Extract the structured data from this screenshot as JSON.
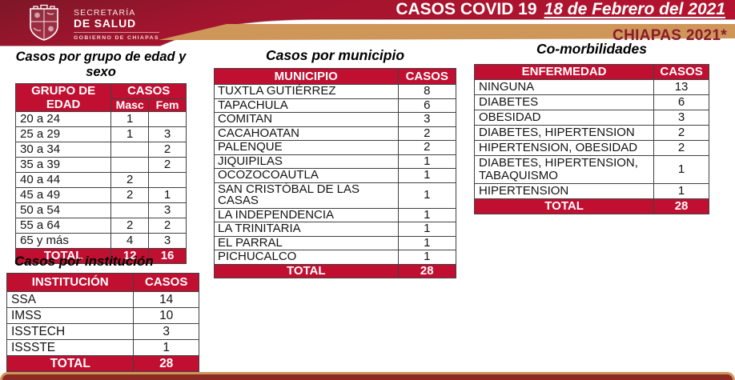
{
  "header": {
    "title": "CASOS COVID 19",
    "date": "18 de Febrero del 2021",
    "region_label": "CHIAPAS 2021*",
    "logo": {
      "line1": "SECRETARÍA",
      "line2": "DE SALUD",
      "line3": "GOBIERNO DE CHIAPAS"
    }
  },
  "colors": {
    "banner_red": "#A91B33",
    "banner_red_dark": "#7D1728",
    "table_header_red": "#C00F31",
    "tan_stripe": "#CE9659",
    "region_label_text": "#8B1B2D",
    "footer_inner": "#8C2A24"
  },
  "age_sex_table": {
    "title": "Casos por grupo de edad y sexo",
    "col_group": "GRUPO DE EDAD",
    "col_cases": "CASOS",
    "col_masc": "Masc",
    "col_fem": "Fem",
    "rows": [
      {
        "group": "20 a 24",
        "masc": "1",
        "fem": ""
      },
      {
        "group": "25 a 29",
        "masc": "1",
        "fem": "3"
      },
      {
        "group": "30 a 34",
        "masc": "",
        "fem": "2"
      },
      {
        "group": "35 a 39",
        "masc": "",
        "fem": "2"
      },
      {
        "group": "40 a 44",
        "masc": "2",
        "fem": ""
      },
      {
        "group": "45 a 49",
        "masc": "2",
        "fem": "1"
      },
      {
        "group": "50 a 54",
        "masc": "",
        "fem": "3"
      },
      {
        "group": "55 a 64",
        "masc": "2",
        "fem": "2"
      },
      {
        "group": "65 y más",
        "masc": "4",
        "fem": "3"
      }
    ],
    "total_label": "TOTAL",
    "total_masc": "12",
    "total_fem": "16"
  },
  "municipio_table": {
    "title": "Casos por municipio",
    "col_name": "MUNICIPIO",
    "col_cases": "CASOS",
    "rows": [
      {
        "name": "TUXTLA GUTIÉRREZ",
        "cases": "8"
      },
      {
        "name": "TAPACHULA",
        "cases": "6"
      },
      {
        "name": "COMITAN",
        "cases": "3"
      },
      {
        "name": "CACAHOATAN",
        "cases": "2"
      },
      {
        "name": "PALENQUE",
        "cases": "2"
      },
      {
        "name": "JIQUIPILAS",
        "cases": "1"
      },
      {
        "name": "OCOZOCOAUTLA",
        "cases": "1"
      },
      {
        "name": "SAN CRISTÓBAL DE LAS CASAS",
        "cases": "1"
      },
      {
        "name": "LA INDEPENDENCIA",
        "cases": "1"
      },
      {
        "name": "LA TRINITARIA",
        "cases": "1"
      },
      {
        "name": "EL PARRAL",
        "cases": "1"
      },
      {
        "name": "PICHUCALCO",
        "cases": "1"
      }
    ],
    "total_label": "TOTAL",
    "total": "28"
  },
  "comorbidities_table": {
    "title": "Co-morbilidades",
    "col_name": "ENFERMEDAD",
    "col_cases": "CASOS",
    "rows": [
      {
        "name": "NINGUNA",
        "cases": "13"
      },
      {
        "name": "DIABETES",
        "cases": "6"
      },
      {
        "name": "OBESIDAD",
        "cases": "3"
      },
      {
        "name": "DIABETES, HIPERTENSION",
        "cases": "2"
      },
      {
        "name": "HIPERTENSION, OBESIDAD",
        "cases": "2"
      },
      {
        "name": "DIABETES, HIPERTENSION, TABAQUISMO",
        "cases": "1"
      },
      {
        "name": "HIPERTENSION",
        "cases": "1"
      }
    ],
    "total_label": "TOTAL",
    "total": "28"
  },
  "institution_table": {
    "title": "Casos por institución",
    "col_name": "INSTITUCIÓN",
    "col_cases": "CASOS",
    "rows": [
      {
        "name": "SSA",
        "cases": "14"
      },
      {
        "name": "IMSS",
        "cases": "10"
      },
      {
        "name": "ISSTECH",
        "cases": "3"
      },
      {
        "name": "ISSSTE",
        "cases": "1"
      }
    ],
    "total_label": "TOTAL",
    "total": "28"
  }
}
